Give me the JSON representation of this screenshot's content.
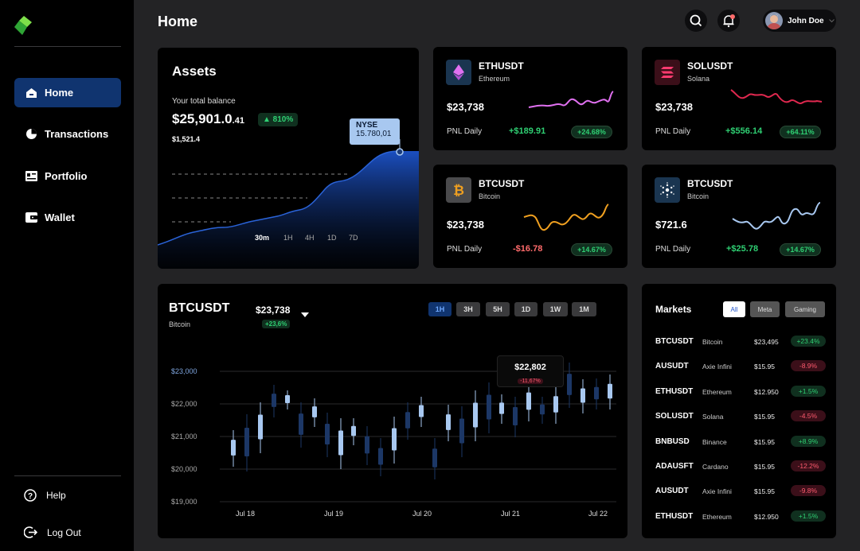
{
  "sidebar": {
    "nav": [
      {
        "label": "Home",
        "icon": "home-icon",
        "active": true
      },
      {
        "label": "Transactions",
        "icon": "pie-chart-icon"
      },
      {
        "label": "Portfolio",
        "icon": "portfolio-icon"
      },
      {
        "label": "Wallet",
        "icon": "wallet-icon"
      }
    ],
    "help_label": "Help",
    "logout_label": "Log Out"
  },
  "header": {
    "title": "Home",
    "user_name": "John Doe"
  },
  "assets": {
    "title": "Assets",
    "balance_label": "Your total balance",
    "balance_main": "$25,901.0",
    "balance_cents": ".41",
    "change": "▲ 810%",
    "sub_value": "$1,521.4",
    "tooltip_title": "NYSE",
    "tooltip_value": "15.780,01",
    "ranges": [
      "30m",
      "1H",
      "4H",
      "1D",
      "7D"
    ],
    "active_range": "30m"
  },
  "tickers": [
    {
      "symbol": "ETHUSDT",
      "name": "Ethereum",
      "price": "$23,738",
      "pnl_label": "PNL Daily",
      "pnl_value": "+$189.91",
      "pnl_pct": "+24.68%",
      "line_color": "#e070f0"
    },
    {
      "symbol": "SOLUSDT",
      "name": "Solana",
      "price": "$23,738",
      "pnl_label": "PNL Daily",
      "pnl_value": "+$556.14",
      "pnl_pct": "+64.11%",
      "line_color": "#e0284f"
    },
    {
      "symbol": "BTCUSDT",
      "name": "Bitcoin",
      "price": "$23,738",
      "pnl_label": "PNL Daily",
      "pnl_value": "-$16.78",
      "pnl_pct": "+14.67%",
      "line_color": "#f0a020"
    },
    {
      "symbol": "BTCUSDT",
      "name": "Bitcoin",
      "price": "$721.6",
      "pnl_label": "PNL Daily",
      "pnl_value": "+$25.78",
      "pnl_pct": "+14.67%",
      "line_color": "#a8c8f0"
    }
  ],
  "btc_panel": {
    "symbol": "BTCUSDT",
    "name": "Bitcoin",
    "price": "$23,738",
    "change": "+23,6%",
    "timeframes": [
      "1H",
      "3H",
      "5H",
      "1D",
      "1W",
      "1M"
    ],
    "active_timeframe": "1H",
    "tooltip_value": "$22,802",
    "tooltip_change": "-11,67%",
    "y_labels": [
      "$23,000",
      "$22,000",
      "$21,000",
      "$20,000",
      "$19,000"
    ],
    "x_labels": [
      "Jul 18",
      "Jul 19",
      "Jul 20",
      "Jul 21",
      "Jul 22"
    ]
  },
  "markets": {
    "title": "Markets",
    "tabs": [
      "All",
      "Meta",
      "Gaming"
    ],
    "active_tab": "All",
    "rows": [
      {
        "symbol": "BTCUSDT",
        "name": "Bitcoin",
        "price": "$23,495",
        "change": "+23.4%",
        "dir": "up"
      },
      {
        "symbol": "AUSUDT",
        "name": "Axie Infini",
        "price": "$15.95",
        "change": "-8.9%",
        "dir": "down"
      },
      {
        "symbol": "ETHUSDT",
        "name": "Ethereum",
        "price": "$12.950",
        "change": "+1.5%",
        "dir": "up"
      },
      {
        "symbol": "SOLUSDT",
        "name": "Solana",
        "price": "$15.95",
        "change": "-4.5%",
        "dir": "down"
      },
      {
        "symbol": "BNBUSD",
        "name": "Binance",
        "price": "$15.95",
        "change": "+8.9%",
        "dir": "up"
      },
      {
        "symbol": "ADAUSFT",
        "name": "Cardano",
        "price": "$15.95",
        "change": "-12.2%",
        "dir": "down"
      },
      {
        "symbol": "AUSUDT",
        "name": "Axie Infini",
        "price": "$15.95",
        "change": "-9.8%",
        "dir": "down"
      },
      {
        "symbol": "ETHUSDT",
        "name": "Ethereum",
        "price": "$12.950",
        "change": "+1.5%",
        "dir": "up"
      }
    ]
  },
  "colors": {
    "accent": "#10346f",
    "up": "#2fd073",
    "down": "#ff5b6f",
    "candle": "#a8c8f0"
  }
}
